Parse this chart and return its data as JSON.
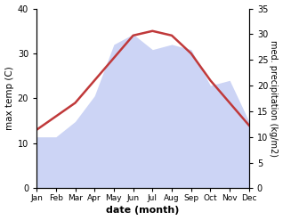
{
  "months": [
    "Jan",
    "Feb",
    "Mar",
    "Apr",
    "May",
    "Jun",
    "Jul",
    "Aug",
    "Sep",
    "Oct",
    "Nov",
    "Dec"
  ],
  "temperature": [
    13,
    16,
    19,
    24,
    29,
    34,
    35,
    34,
    30,
    24,
    19,
    14
  ],
  "precipitation": [
    10,
    10,
    13,
    18,
    28,
    30,
    27,
    28,
    27,
    20,
    21,
    13
  ],
  "temp_color": "#c0393a",
  "precip_color_fill": "#ccd4f5",
  "ylabel_left": "max temp (C)",
  "ylabel_right": "med. precipitation (kg/m2)",
  "xlabel": "date (month)",
  "ylim_left": [
    0,
    40
  ],
  "ylim_right": [
    0,
    35
  ],
  "yticks_left": [
    0,
    10,
    20,
    30,
    40
  ],
  "yticks_right": [
    0,
    5,
    10,
    15,
    20,
    25,
    30,
    35
  ],
  "background_color": "#ffffff"
}
